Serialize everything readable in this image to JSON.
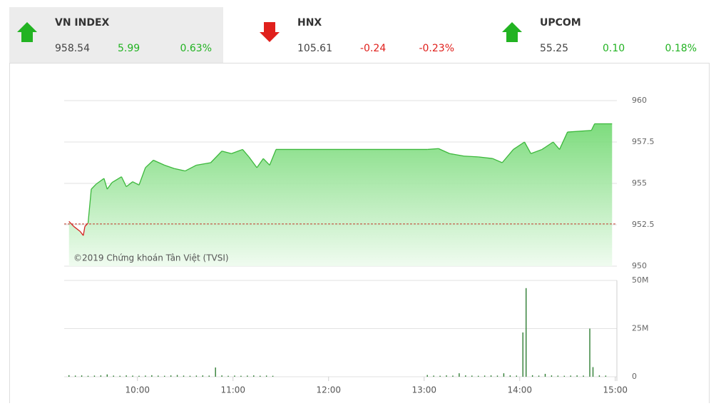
{
  "indices": [
    {
      "name": "VN INDEX",
      "value": "958.54",
      "change": "5.99",
      "percent": "0.63%",
      "direction": "up",
      "color": "#22b322",
      "selected": true
    },
    {
      "name": "HNX",
      "value": "105.61",
      "change": "-0.24",
      "percent": "-0.23%",
      "direction": "down",
      "color": "#e0201c",
      "selected": false
    },
    {
      "name": "UPCOM",
      "value": "55.25",
      "change": "0.10",
      "percent": "0.18%",
      "direction": "up",
      "color": "#22b322",
      "selected": false
    }
  ],
  "chart_data": [
    {
      "type": "area",
      "annotation": "©2019 Chứng khoán Tân Việt (TVSI)",
      "reference": 952.55,
      "reference_color": "#c0392b",
      "up_color": "#3cb83c",
      "down_color": "#d62020",
      "x": [
        557,
        560,
        564,
        566,
        567,
        569,
        571,
        574,
        579,
        581,
        584,
        590,
        593,
        597,
        601,
        605,
        610,
        617,
        623,
        630,
        637,
        646,
        653,
        659,
        666,
        670,
        675,
        679,
        683,
        687,
        782,
        789,
        796,
        805,
        814,
        823,
        829,
        836,
        843,
        847,
        854,
        861,
        865,
        870,
        885,
        887,
        898
      ],
      "values": [
        952.7,
        952.4,
        952.1,
        951.85,
        952.4,
        952.6,
        954.65,
        954.95,
        955.3,
        954.65,
        955.05,
        955.4,
        954.8,
        955.1,
        954.9,
        955.95,
        956.4,
        956.1,
        955.9,
        955.75,
        956.1,
        956.25,
        956.95,
        956.8,
        957.05,
        956.6,
        955.95,
        956.5,
        956.1,
        957.05,
        957.05,
        957.1,
        956.8,
        956.65,
        956.6,
        956.5,
        956.25,
        957.05,
        957.5,
        956.8,
        957.05,
        957.5,
        957.05,
        958.1,
        958.2,
        958.6,
        958.6
      ],
      "xlim": [
        554,
        901
      ],
      "ylim": [
        950,
        960
      ],
      "yticks": [
        950,
        952.5,
        955,
        957.5,
        960
      ],
      "grid": true
    },
    {
      "type": "bar",
      "color": "#2e7d32",
      "x": [
        557,
        561,
        565,
        569,
        573,
        577,
        581,
        585,
        589,
        593,
        597,
        601,
        605,
        609,
        613,
        617,
        621,
        625,
        629,
        633,
        637,
        641,
        645,
        649,
        653,
        657,
        661,
        665,
        669,
        673,
        677,
        681,
        685,
        782,
        786,
        790,
        794,
        798,
        802,
        806,
        810,
        814,
        818,
        822,
        826,
        830,
        834,
        838,
        842,
        844,
        848,
        852,
        856,
        860,
        864,
        868,
        872,
        876,
        880,
        884,
        886,
        890,
        894
      ],
      "values": [
        0.8,
        0.6,
        0.7,
        0.5,
        0.6,
        0.7,
        1.2,
        0.6,
        0.5,
        0.7,
        0.6,
        0.5,
        0.6,
        0.8,
        0.6,
        0.5,
        0.7,
        0.9,
        0.6,
        0.5,
        0.6,
        0.7,
        0.6,
        4.8,
        0.7,
        0.5,
        0.6,
        0.5,
        0.6,
        0.7,
        0.5,
        0.6,
        0.5,
        0.9,
        0.6,
        0.5,
        0.7,
        0.6,
        1.8,
        0.7,
        0.6,
        0.5,
        0.6,
        0.7,
        0.6,
        1.8,
        0.7,
        0.6,
        23,
        46,
        0.8,
        0.6,
        1.5,
        0.7,
        0.6,
        0.5,
        0.6,
        0.7,
        0.6,
        25,
        5,
        0.7,
        0.6
      ],
      "xlim": [
        554,
        901
      ],
      "ylim": [
        0,
        50
      ],
      "yticks": [
        0,
        {
          "value": 25,
          "label": "25M"
        },
        {
          "value": 50,
          "label": "50M"
        }
      ],
      "xticks": [
        {
          "value": 600,
          "label": "10:00"
        },
        {
          "value": 660,
          "label": "11:00"
        },
        {
          "value": 720,
          "label": "12:00"
        },
        {
          "value": 780,
          "label": "13:00"
        },
        {
          "value": 840,
          "label": "14:00"
        },
        {
          "value": 900,
          "label": "15:00"
        }
      ],
      "grid": true
    }
  ]
}
